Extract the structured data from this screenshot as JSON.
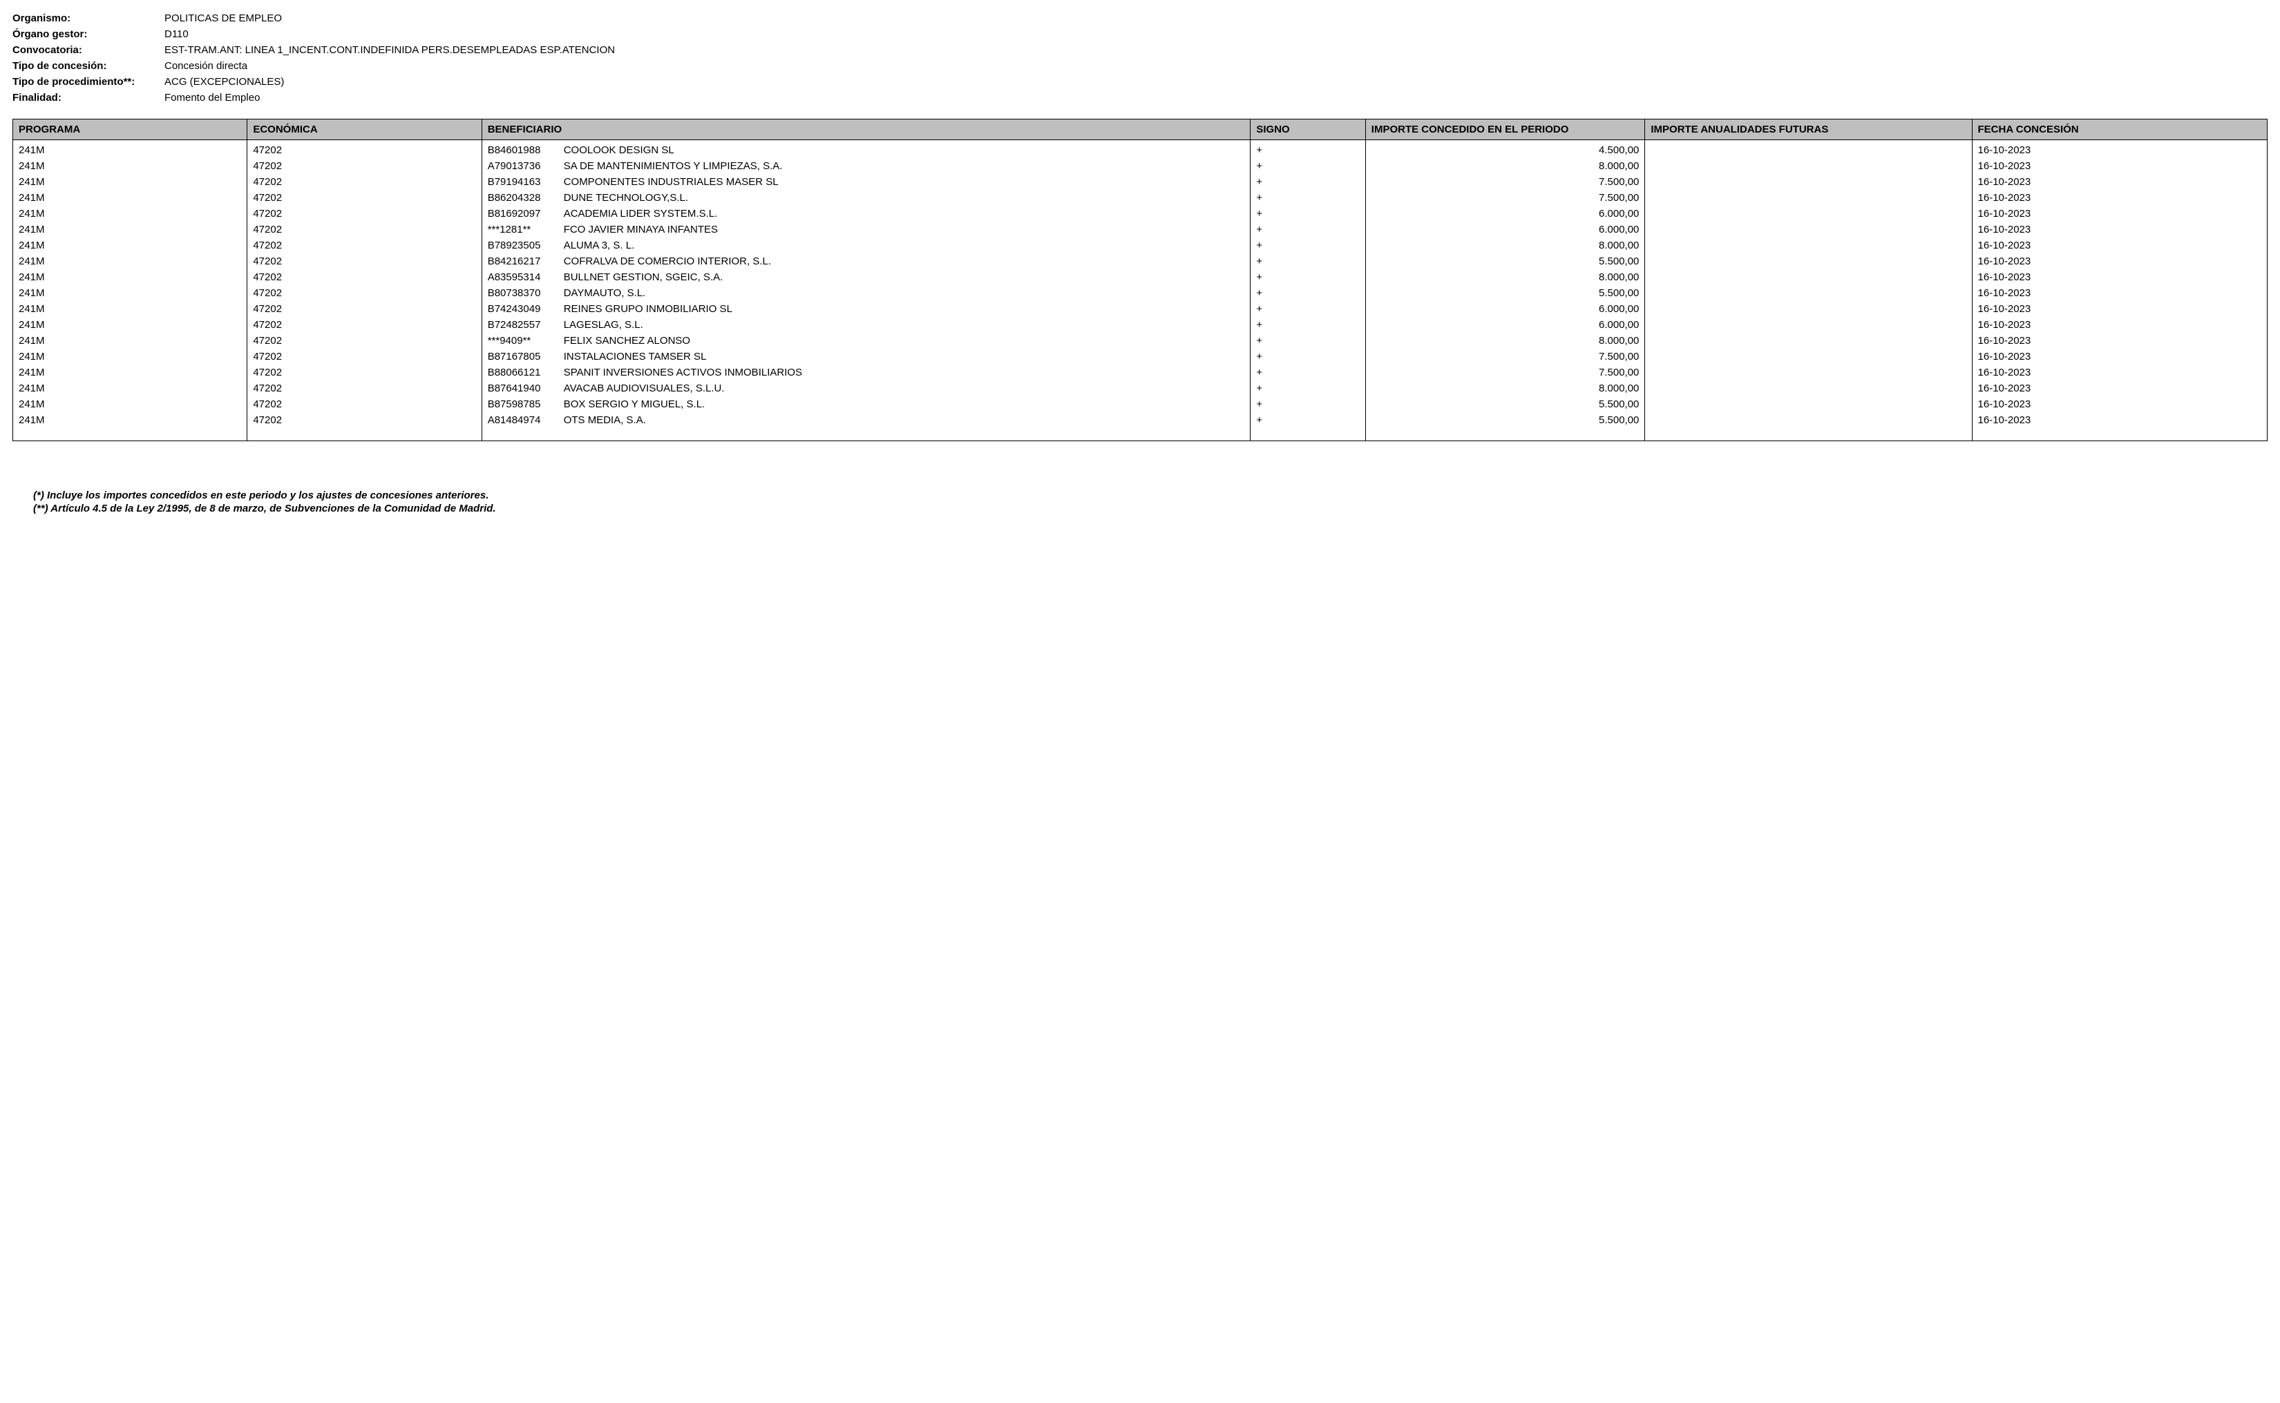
{
  "header": {
    "fields": [
      {
        "label": "Organismo:",
        "value": "POLITICAS DE EMPLEO"
      },
      {
        "label": "Órgano gestor:",
        "value": "D110"
      },
      {
        "label": "Convocatoria:",
        "value": "EST-TRAM.ANT: LINEA 1_INCENT.CONT.INDEFINIDA PERS.DESEMPLEADAS ESP.ATENCION"
      },
      {
        "label": "Tipo de concesión:",
        "value": "Concesión directa"
      },
      {
        "label": "Tipo de procedimiento**:",
        "value": "ACG (EXCEPCIONALES)"
      },
      {
        "label": "Finalidad:",
        "value": "Fomento del Empleo"
      }
    ]
  },
  "table": {
    "columns": [
      "PROGRAMA",
      "ECONÓMICA",
      "BENEFICIARIO",
      "SIGNO",
      "IMPORTE CONCEDIDO EN EL PERIODO",
      "IMPORTE ANUALIDADES FUTURAS",
      "FECHA CONCESIÓN"
    ],
    "rows": [
      {
        "programa": "241M",
        "economica": "47202",
        "benef_id": "B84601988",
        "benef_name": "COOLOOK DESIGN SL",
        "signo": "+",
        "importe_periodo": "4.500,00",
        "importe_futuras": "",
        "fecha": "16-10-2023"
      },
      {
        "programa": "241M",
        "economica": "47202",
        "benef_id": "A79013736",
        "benef_name": "SA DE MANTENIMIENTOS Y LIMPIEZAS, S.A.",
        "signo": "+",
        "importe_periodo": "8.000,00",
        "importe_futuras": "",
        "fecha": "16-10-2023"
      },
      {
        "programa": "241M",
        "economica": "47202",
        "benef_id": "B79194163",
        "benef_name": "COMPONENTES INDUSTRIALES MASER SL",
        "signo": "+",
        "importe_periodo": "7.500,00",
        "importe_futuras": "",
        "fecha": "16-10-2023"
      },
      {
        "programa": "241M",
        "economica": "47202",
        "benef_id": "B86204328",
        "benef_name": "DUNE TECHNOLOGY,S.L.",
        "signo": "+",
        "importe_periodo": "7.500,00",
        "importe_futuras": "",
        "fecha": "16-10-2023"
      },
      {
        "programa": "241M",
        "economica": "47202",
        "benef_id": "B81692097",
        "benef_name": "ACADEMIA LIDER SYSTEM.S.L.",
        "signo": "+",
        "importe_periodo": "6.000,00",
        "importe_futuras": "",
        "fecha": "16-10-2023"
      },
      {
        "programa": "241M",
        "economica": "47202",
        "benef_id": "***1281**",
        "benef_name": "FCO JAVIER MINAYA INFANTES",
        "signo": "+",
        "importe_periodo": "6.000,00",
        "importe_futuras": "",
        "fecha": "16-10-2023"
      },
      {
        "programa": "241M",
        "economica": "47202",
        "benef_id": "B78923505",
        "benef_name": "ALUMA 3, S. L.",
        "signo": "+",
        "importe_periodo": "8.000,00",
        "importe_futuras": "",
        "fecha": "16-10-2023"
      },
      {
        "programa": "241M",
        "economica": "47202",
        "benef_id": "B84216217",
        "benef_name": "COFRALVA DE COMERCIO INTERIOR, S.L.",
        "signo": "+",
        "importe_periodo": "5.500,00",
        "importe_futuras": "",
        "fecha": "16-10-2023"
      },
      {
        "programa": "241M",
        "economica": "47202",
        "benef_id": "A83595314",
        "benef_name": "BULLNET GESTION, SGEIC, S.A.",
        "signo": "+",
        "importe_periodo": "8.000,00",
        "importe_futuras": "",
        "fecha": "16-10-2023"
      },
      {
        "programa": "241M",
        "economica": "47202",
        "benef_id": "B80738370",
        "benef_name": "DAYMAUTO, S.L.",
        "signo": "+",
        "importe_periodo": "5.500,00",
        "importe_futuras": "",
        "fecha": "16-10-2023"
      },
      {
        "programa": "241M",
        "economica": "47202",
        "benef_id": "B74243049",
        "benef_name": "REINES GRUPO INMOBILIARIO SL",
        "signo": "+",
        "importe_periodo": "6.000,00",
        "importe_futuras": "",
        "fecha": "16-10-2023"
      },
      {
        "programa": "241M",
        "economica": "47202",
        "benef_id": "B72482557",
        "benef_name": "LAGESLAG, S.L.",
        "signo": "+",
        "importe_periodo": "6.000,00",
        "importe_futuras": "",
        "fecha": "16-10-2023"
      },
      {
        "programa": "241M",
        "economica": "47202",
        "benef_id": "***9409**",
        "benef_name": "FELIX SANCHEZ ALONSO",
        "signo": "+",
        "importe_periodo": "8.000,00",
        "importe_futuras": "",
        "fecha": "16-10-2023"
      },
      {
        "programa": "241M",
        "economica": "47202",
        "benef_id": "B87167805",
        "benef_name": "INSTALACIONES TAMSER SL",
        "signo": "+",
        "importe_periodo": "7.500,00",
        "importe_futuras": "",
        "fecha": "16-10-2023"
      },
      {
        "programa": "241M",
        "economica": "47202",
        "benef_id": "B88066121",
        "benef_name": "SPANIT INVERSIONES ACTIVOS INMOBILIARIOS",
        "signo": "+",
        "importe_periodo": "7.500,00",
        "importe_futuras": "",
        "fecha": "16-10-2023"
      },
      {
        "programa": "241M",
        "economica": "47202",
        "benef_id": "B87641940",
        "benef_name": "AVACAB AUDIOVISUALES, S.L.U.",
        "signo": "+",
        "importe_periodo": "8.000,00",
        "importe_futuras": "",
        "fecha": "16-10-2023"
      },
      {
        "programa": "241M",
        "economica": "47202",
        "benef_id": "B87598785",
        "benef_name": "BOX SERGIO Y MIGUEL, S.L.",
        "signo": "+",
        "importe_periodo": "5.500,00",
        "importe_futuras": "",
        "fecha": "16-10-2023"
      },
      {
        "programa": "241M",
        "economica": "47202",
        "benef_id": "A81484974",
        "benef_name": "OTS MEDIA, S.A.",
        "signo": "+",
        "importe_periodo": "5.500,00",
        "importe_futuras": "",
        "fecha": "16-10-2023"
      }
    ]
  },
  "footnotes": [
    "(*) Incluye los importes concedidos en este periodo y los ajustes de concesiones anteriores.",
    "(**) Artículo 4.5 de la Ley 2/1995, de 8 de marzo, de Subvenciones de la Comunidad de Madrid."
  ]
}
